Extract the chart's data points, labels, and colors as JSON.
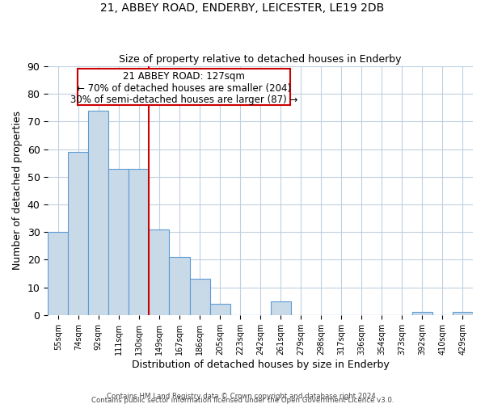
{
  "title": "21, ABBEY ROAD, ENDERBY, LEICESTER, LE19 2DB",
  "subtitle": "Size of property relative to detached houses in Enderby",
  "xlabel": "Distribution of detached houses by size in Enderby",
  "ylabel": "Number of detached properties",
  "footer_lines": [
    "Contains HM Land Registry data © Crown copyright and database right 2024.",
    "Contains public sector information licensed under the Open Government Licence v3.0."
  ],
  "bin_labels": [
    "55sqm",
    "74sqm",
    "92sqm",
    "111sqm",
    "130sqm",
    "149sqm",
    "167sqm",
    "186sqm",
    "205sqm",
    "223sqm",
    "242sqm",
    "261sqm",
    "279sqm",
    "298sqm",
    "317sqm",
    "336sqm",
    "354sqm",
    "373sqm",
    "392sqm",
    "410sqm",
    "429sqm"
  ],
  "bar_values": [
    30,
    59,
    74,
    53,
    53,
    31,
    21,
    13,
    4,
    0,
    0,
    5,
    0,
    0,
    0,
    0,
    0,
    0,
    1,
    0,
    1
  ],
  "bar_color": "#c8d9e8",
  "bar_edgecolor": "#5b9bd5",
  "vline_color": "#cc0000",
  "annotation_line1": "21 ABBEY ROAD: 127sqm",
  "annotation_line2": "← 70% of detached houses are smaller (204)",
  "annotation_line3": "30% of semi-detached houses are larger (87) →",
  "ylim": [
    0,
    90
  ],
  "yticks": [
    0,
    10,
    20,
    30,
    40,
    50,
    60,
    70,
    80,
    90
  ],
  "bg_color": "#ffffff",
  "grid_color": "#c0d0e0"
}
